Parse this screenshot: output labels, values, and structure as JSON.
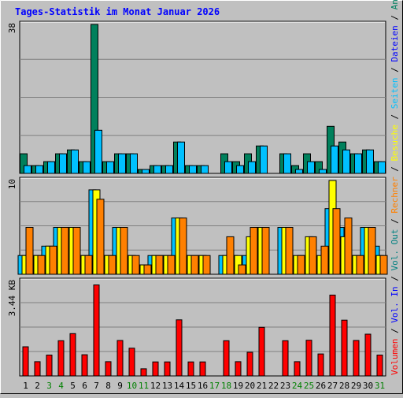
{
  "title": "Tages-Statistik im Monat Januar 2026",
  "colors": {
    "background": "#c0c0c0",
    "title": "#0000ff",
    "anfragen": "#00805c",
    "dateien": "#00c0ff",
    "seiten": "#00c0ff",
    "besuche": "#ffff00",
    "rechner": "#ff8000",
    "volumen": "#ff0000",
    "vol_in": "#0000ff",
    "vol_out": "#008080",
    "weekend_label": "#008000"
  },
  "chart_data": [
    {
      "type": "bar",
      "panel": "top",
      "ytick": "38",
      "ylim": [
        0,
        38
      ],
      "categories": [
        "1",
        "2",
        "3",
        "4",
        "5",
        "6",
        "7",
        "8",
        "9",
        "10",
        "11",
        "12",
        "13",
        "14",
        "15",
        "16",
        "17",
        "18",
        "19",
        "20",
        "21",
        "22",
        "23",
        "24",
        "25",
        "26",
        "27",
        "28",
        "29",
        "30",
        "31"
      ],
      "series": [
        {
          "name": "Anfragen",
          "values": [
            5,
            2,
            3,
            5,
            6,
            3,
            38,
            3,
            5,
            5,
            1,
            2,
            2,
            8,
            2,
            2,
            0,
            5,
            3,
            5,
            7,
            0,
            5,
            2,
            5,
            3,
            12,
            8,
            5,
            6,
            3
          ]
        },
        {
          "name": "Dateien",
          "values": [
            2,
            2,
            3,
            5,
            6,
            3,
            11,
            3,
            5,
            5,
            1,
            2,
            2,
            8,
            2,
            2,
            0,
            3,
            2,
            3,
            7,
            0,
            5,
            1,
            3,
            1,
            7,
            6,
            5,
            6,
            3
          ]
        }
      ]
    },
    {
      "type": "bar",
      "panel": "middle",
      "ytick": "10",
      "ylim": [
        0,
        10
      ],
      "categories": [
        "1",
        "2",
        "3",
        "4",
        "5",
        "6",
        "7",
        "8",
        "9",
        "10",
        "11",
        "12",
        "13",
        "14",
        "15",
        "16",
        "17",
        "18",
        "19",
        "20",
        "21",
        "22",
        "23",
        "24",
        "25",
        "26",
        "27",
        "28",
        "29",
        "30",
        "31"
      ],
      "series": [
        {
          "name": "Seiten",
          "values": [
            2,
            2,
            3,
            5,
            5,
            2,
            9,
            2,
            5,
            2,
            1,
            2,
            2,
            6,
            2,
            2,
            0,
            2,
            2,
            2,
            5,
            0,
            5,
            1,
            2,
            1,
            7,
            5,
            2,
            5,
            3
          ]
        },
        {
          "name": "Besuche",
          "values": [
            2,
            2,
            3,
            5,
            5,
            2,
            9,
            2,
            5,
            2,
            1,
            2,
            2,
            6,
            2,
            2,
            0,
            2,
            2,
            4,
            5,
            0,
            5,
            2,
            4,
            2,
            10,
            4,
            2,
            5,
            2
          ]
        },
        {
          "name": "Rechner",
          "values": [
            5,
            2,
            3,
            5,
            5,
            2,
            8,
            2,
            5,
            2,
            1,
            2,
            2,
            6,
            2,
            2,
            0,
            4,
            1,
            5,
            5,
            0,
            5,
            2,
            4,
            3,
            7,
            6,
            2,
            5,
            2
          ]
        }
      ]
    },
    {
      "type": "bar",
      "panel": "bottom",
      "ytick": "3.44 KB",
      "ylim": [
        0,
        3.44
      ],
      "categories": [
        "1",
        "2",
        "3",
        "4",
        "5",
        "6",
        "7",
        "8",
        "9",
        "10",
        "11",
        "12",
        "13",
        "14",
        "15",
        "16",
        "17",
        "18",
        "19",
        "20",
        "21",
        "22",
        "23",
        "24",
        "25",
        "26",
        "27",
        "28",
        "29",
        "30",
        "31"
      ],
      "series": [
        {
          "name": "Volumen",
          "values": [
            1.06,
            0.52,
            0.76,
            1.28,
            1.54,
            0.77,
            3.31,
            0.52,
            1.29,
            1.01,
            0.26,
            0.51,
            0.51,
            2.04,
            0.51,
            0.51,
            0,
            1.28,
            0.52,
            0.86,
            1.77,
            0,
            1.28,
            0.52,
            1.3,
            0.8,
            2.94,
            2.03,
            1.29,
            1.52,
            0.76
          ]
        }
      ]
    }
  ],
  "right_label_parts": [
    {
      "text": "Volumen",
      "color": "#ff0000"
    },
    {
      "text": " / ",
      "color": "#000000"
    },
    {
      "text": "Vol. In",
      "color": "#0000ff"
    },
    {
      "text": " / ",
      "color": "#000000"
    },
    {
      "text": "Vol. Out",
      "color": "#008080"
    },
    {
      "text": " / ",
      "color": "#000000"
    },
    {
      "text": "Rechner",
      "color": "#ff8000"
    },
    {
      "text": " / ",
      "color": "#000000"
    },
    {
      "text": "Besuche",
      "color": "#ffff00"
    },
    {
      "text": " / ",
      "color": "#000000"
    },
    {
      "text": "Seiten",
      "color": "#00c0ff"
    },
    {
      "text": " / ",
      "color": "#000000"
    },
    {
      "text": "Dateien",
      "color": "#0000ff"
    },
    {
      "text": " / ",
      "color": "#000000"
    },
    {
      "text": "Anfragen",
      "color": "#008060"
    }
  ],
  "weekend_days": [
    "3",
    "4",
    "10",
    "11",
    "17",
    "18",
    "24",
    "25",
    "31"
  ]
}
